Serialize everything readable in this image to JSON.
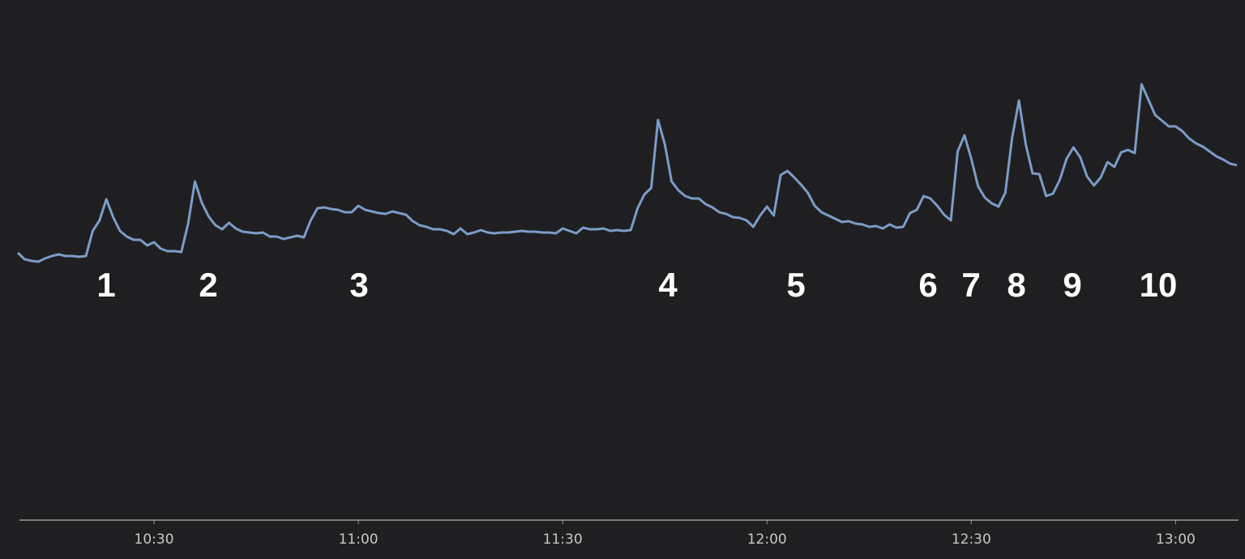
{
  "chart_data": {
    "type": "line",
    "x": [
      "10:10",
      "10:11",
      "10:12",
      "10:13",
      "10:14",
      "10:15",
      "10:16",
      "10:17",
      "10:18",
      "10:19",
      "10:20",
      "10:21",
      "10:22",
      "10:23",
      "10:24",
      "10:25",
      "10:26",
      "10:27",
      "10:28",
      "10:29",
      "10:30",
      "10:31",
      "10:32",
      "10:33",
      "10:34",
      "10:35",
      "10:36",
      "10:37",
      "10:38",
      "10:39",
      "10:40",
      "10:41",
      "10:42",
      "10:43",
      "10:44",
      "10:45",
      "10:46",
      "10:47",
      "10:48",
      "10:49",
      "10:50",
      "10:51",
      "10:52",
      "10:53",
      "10:54",
      "10:55",
      "10:56",
      "10:57",
      "10:58",
      "10:59",
      "11:00",
      "11:01",
      "11:02",
      "11:03",
      "11:04",
      "11:05",
      "11:06",
      "11:07",
      "11:08",
      "11:09",
      "11:10",
      "11:11",
      "11:12",
      "11:13",
      "11:14",
      "11:15",
      "11:16",
      "11:17",
      "11:18",
      "11:19",
      "11:20",
      "11:21",
      "11:22",
      "11:23",
      "11:24",
      "11:25",
      "11:26",
      "11:27",
      "11:28",
      "11:29",
      "11:30",
      "11:31",
      "11:32",
      "11:33",
      "11:34",
      "11:35",
      "11:36",
      "11:37",
      "11:38",
      "11:39",
      "11:40",
      "11:41",
      "11:42",
      "11:43",
      "11:44",
      "11:45",
      "11:46",
      "11:47",
      "11:48",
      "11:49",
      "11:50",
      "11:51",
      "11:52",
      "11:53",
      "11:54",
      "11:55",
      "11:56",
      "11:57",
      "11:58",
      "11:59",
      "12:00",
      "12:01",
      "12:02",
      "12:03",
      "12:04",
      "12:05",
      "12:06",
      "12:07",
      "12:08",
      "12:09",
      "12:10",
      "12:11",
      "12:12",
      "12:13",
      "12:14",
      "12:15",
      "12:16",
      "12:17",
      "12:18",
      "12:19",
      "12:20",
      "12:21",
      "12:22",
      "12:23",
      "12:24",
      "12:25",
      "12:26",
      "12:27",
      "12:28",
      "12:29",
      "12:30",
      "12:31",
      "12:32",
      "12:33",
      "12:34",
      "12:35",
      "12:36",
      "12:37",
      "12:38",
      "12:39",
      "12:40",
      "12:41",
      "12:42",
      "12:43",
      "12:44",
      "12:45",
      "12:46",
      "12:47",
      "12:48",
      "12:49",
      "12:50",
      "12:51",
      "12:52",
      "12:53",
      "12:54",
      "12:55",
      "12:56",
      "12:57",
      "12:58",
      "12:59",
      "13:00",
      "13:01",
      "13:02",
      "13:03",
      "13:04",
      "13:05",
      "13:06",
      "13:07",
      "13:08",
      "13:09"
    ],
    "series": [
      {
        "color": "#7b9cc7",
        "values": [
          330,
          322,
          320,
          319,
          323,
          326,
          328,
          326,
          326,
          325,
          326,
          357,
          370,
          396,
          374,
          357,
          350,
          346,
          346,
          339,
          343,
          335,
          332,
          332,
          331,
          366,
          418,
          392,
          375,
          364,
          359,
          367,
          360,
          356,
          355,
          354,
          355,
          350,
          350,
          347,
          349,
          351,
          349,
          370,
          385,
          386,
          384,
          383,
          380,
          380,
          388,
          383,
          381,
          379,
          378,
          381,
          379,
          377,
          369,
          364,
          362,
          359,
          359,
          357,
          353,
          360,
          353,
          355,
          358,
          355,
          354,
          355,
          355,
          356,
          357,
          356,
          356,
          355,
          355,
          354,
          360,
          357,
          354,
          361,
          359,
          359,
          360,
          357,
          358,
          357,
          358,
          385,
          402,
          410,
          494,
          464,
          418,
          407,
          400,
          397,
          397,
          390,
          386,
          380,
          378,
          374,
          373,
          370,
          362,
          376,
          387,
          376,
          426,
          431,
          423,
          414,
          404,
          388,
          380,
          376,
          372,
          368,
          369,
          366,
          365,
          362,
          363,
          360,
          365,
          361,
          362,
          379,
          383,
          400,
          397,
          388,
          377,
          370,
          455,
          475,
          446,
          412,
          398,
          391,
          387,
          404,
          472,
          518,
          464,
          428,
          427,
          400,
          403,
          420,
          446,
          460,
          448,
          424,
          413,
          423,
          442,
          436,
          454,
          457,
          453,
          538,
          519,
          500,
          493,
          486,
          486,
          480,
          471,
          465,
          461,
          455,
          449,
          445,
          440,
          438
        ]
      }
    ],
    "xlim": [
      "10:10",
      "13:09"
    ],
    "xticks": [
      "10:30",
      "11:00",
      "11:30",
      "12:00",
      "12:30",
      "13:00"
    ],
    "ylim": [
      0,
      600
    ],
    "annotations": [
      "1",
      "2",
      "3",
      "4",
      "5",
      "6",
      "7",
      "8",
      "9",
      "10"
    ]
  }
}
